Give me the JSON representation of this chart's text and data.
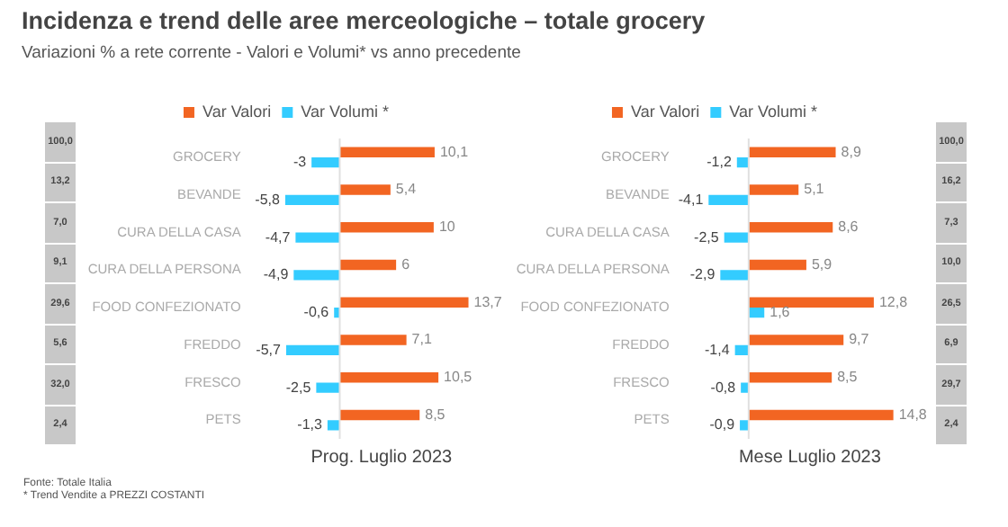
{
  "chart_data": [
    {
      "type": "other",
      "title": "Incidenza e trend delle aree merceologiche – totale grocery",
      "subtitle": "Variazioni  % a rete corrente - Valori e Volumi*  vs anno precedente",
      "annotations": [
        "100,0",
        "13,2",
        "7,0",
        "9,1",
        "29,6",
        "5,6",
        "32,0",
        "2,4"
      ]
    },
    {
      "type": "bar",
      "orientation": "horizontal",
      "xlabel": "Prog. Luglio 2023",
      "categories": [
        "GROCERY",
        "BEVANDE",
        "CURA DELLA CASA",
        "CURA DELLA PERSONA",
        "FOOD CONFEZIONATO",
        "FREDDO",
        "FRESCO",
        "PETS"
      ],
      "series": [
        {
          "name": "Var Valori",
          "color": "#f26522",
          "values": [
            10.1,
            5.4,
            10,
            6,
            13.7,
            7.1,
            10.5,
            8.5
          ],
          "value_labels": [
            "10,1",
            "5,4",
            "10",
            "6",
            "13,7",
            "7,1",
            "10,5",
            "8,5"
          ]
        },
        {
          "name": "Var Volumi *",
          "color": "#33ccff",
          "values": [
            -3,
            -5.8,
            -4.7,
            -4.9,
            -0.6,
            -5.7,
            -2.5,
            -1.3
          ],
          "value_labels": [
            "-3",
            "-5,8",
            "-4,7",
            "-4,9",
            "-0,6",
            "-5,7",
            "-2,5",
            "-1,3"
          ]
        }
      ],
      "legend": "top",
      "grid": false,
      "annotations": [
        "Fonte: Totale Italia",
        "* Trend Vendite a PREZZI COSTANTI"
      ]
    },
    {
      "type": "bar",
      "orientation": "horizontal",
      "xlabel": "Mese Luglio 2023",
      "categories": [
        "GROCERY",
        "BEVANDE",
        "CURA DELLA CASA",
        "CURA DELLA PERSONA",
        "FOOD CONFEZIONATO",
        "FREDDO",
        "FRESCO",
        "PETS"
      ],
      "series": [
        {
          "name": "Var Valori",
          "color": "#f26522",
          "values": [
            8.9,
            5.1,
            8.6,
            5.9,
            12.8,
            9.7,
            8.5,
            14.8
          ],
          "value_labels": [
            "8,9",
            "5,1",
            "8,6",
            "5,9",
            "12,8",
            "9,7",
            "8,5",
            "14,8"
          ]
        },
        {
          "name": "Var Volumi *",
          "color": "#33ccff",
          "values": [
            -1.2,
            -4.1,
            -2.5,
            -2.9,
            1.6,
            -1.4,
            -0.8,
            -0.9
          ],
          "value_labels": [
            "-1,2",
            "-4,1",
            "-2,5",
            "-2,9",
            "1,6",
            "-1,4",
            "-0,8",
            "-0,9"
          ]
        }
      ],
      "legend": "top",
      "grid": false
    },
    {
      "type": "other",
      "annotations": [
        "100,0",
        "16,2",
        "7,3",
        "10,0",
        "26,5",
        "6,9",
        "29,7",
        "2,4"
      ]
    }
  ]
}
